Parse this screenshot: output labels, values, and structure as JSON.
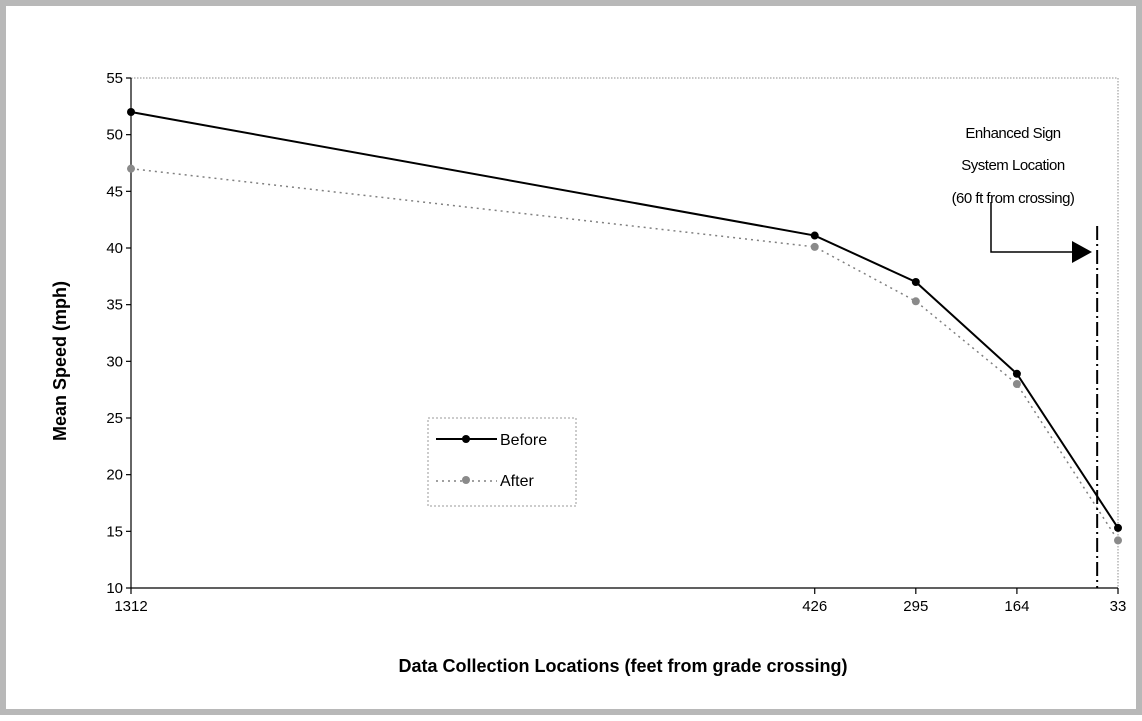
{
  "chart_data": {
    "type": "line",
    "x": [
      "1312",
      "426",
      "295",
      "164",
      "33"
    ],
    "x_values": [
      1312,
      426,
      295,
      164,
      33
    ],
    "x_reversed": true,
    "xlabel": "Data Collection Locations (feet from grade crossing)",
    "ylabel": "Mean Speed (mph)",
    "ylim": [
      10,
      55
    ],
    "yticks": [
      10,
      15,
      20,
      25,
      30,
      35,
      40,
      45,
      50,
      55
    ],
    "grid": false,
    "legend_placement": "center-left",
    "series": [
      {
        "name": "Before",
        "values": [
          52,
          41.1,
          37,
          28.9,
          15.3
        ],
        "color": "#000000",
        "style": "solid"
      },
      {
        "name": "After",
        "values": [
          47,
          40.1,
          35.3,
          28,
          14.2
        ],
        "color": "#808080",
        "style": "dotted"
      }
    ],
    "annotation": {
      "lines": [
        "Enhanced Sign",
        "System Location",
        "(60 ft from crossing)"
      ],
      "x_value": 60
    }
  }
}
